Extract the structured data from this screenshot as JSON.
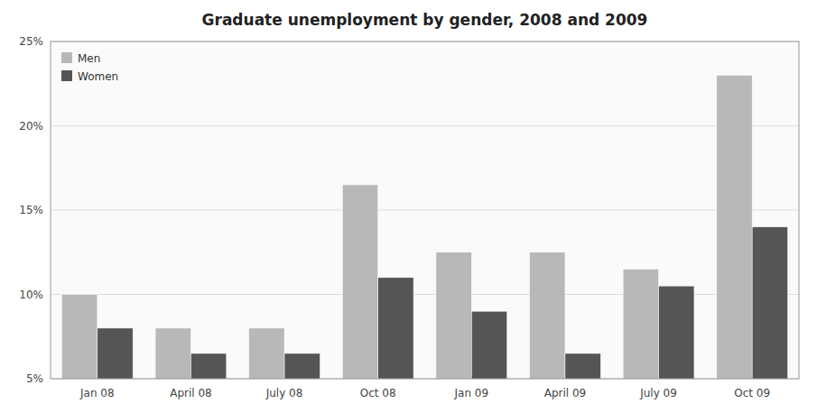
{
  "chart_data": {
    "type": "bar",
    "title": "Graduate unemployment by gender, 2008 and 2009",
    "categories": [
      "Jan 08",
      "April 08",
      "July 08",
      "Oct 08",
      "Jan 09",
      "April 09",
      "July 09",
      "Oct 09"
    ],
    "series": [
      {
        "name": "Men",
        "color": "#b8b8b8",
        "values": [
          10,
          8,
          8,
          16.5,
          12.5,
          12.5,
          11.5,
          23
        ]
      },
      {
        "name": "Women",
        "color": "#555555",
        "values": [
          8,
          6.5,
          6.5,
          11,
          9,
          6.5,
          10.5,
          14
        ]
      }
    ],
    "ylim": [
      5,
      25
    ],
    "yticks": [
      {
        "value": 5,
        "label": "5%"
      },
      {
        "value": 10,
        "label": "10%"
      },
      {
        "value": 15,
        "label": "15%"
      },
      {
        "value": 20,
        "label": "20%"
      },
      {
        "value": 25,
        "label": "25%"
      }
    ],
    "grid": true,
    "legend": "upper left"
  }
}
